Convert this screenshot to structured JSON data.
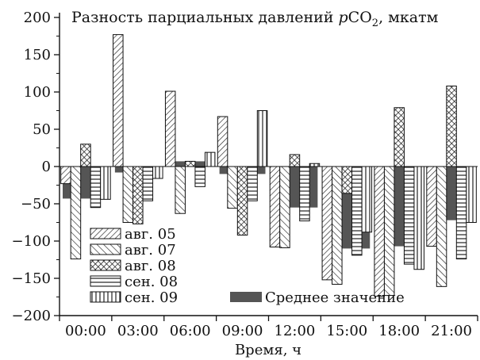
{
  "chart_data": {
    "type": "bar",
    "title": "Разность парциальных давлений pCO₂, мкатм",
    "title_parts": {
      "prefix": "Разность парциальных давлений ",
      "italic": "p",
      "species": "CO",
      "subscript": "2",
      "suffix": ", мкатм"
    },
    "xlabel": "Время, ч",
    "ylabel": "",
    "ylim": [
      -200,
      200
    ],
    "yticks": [
      "200",
      "150",
      "100",
      "50",
      "0",
      "−50",
      "−100",
      "−150",
      "−200"
    ],
    "yticks_values": [
      200,
      150,
      100,
      50,
      0,
      -50,
      -100,
      -150,
      -200
    ],
    "categories": [
      "00:00",
      "03:00",
      "06:00",
      "09:00",
      "12:00",
      "15:00",
      "18:00",
      "21:00"
    ],
    "series": [
      {
        "name": "авг. 05",
        "pattern": "diag-right",
        "values": [
          -23,
          177,
          101,
          67,
          -108,
          -152,
          -174,
          -107
        ]
      },
      {
        "name": "авг. 07",
        "pattern": "diag-left",
        "values": [
          -124,
          -75,
          -63,
          -56,
          -109,
          -158,
          -173,
          -161
        ]
      },
      {
        "name": "авг. 08",
        "pattern": "crosshatch",
        "values": [
          30,
          -77,
          7,
          -92,
          16,
          -36,
          79,
          108
        ]
      },
      {
        "name": "сен. 08",
        "pattern": "horizontal",
        "values": [
          -55,
          -46,
          -27,
          -46,
          -73,
          -119,
          -131,
          -124
        ]
      },
      {
        "name": "сен. 09",
        "pattern": "vertical",
        "values": [
          -44,
          -16,
          19,
          75,
          4,
          -88,
          -138,
          -75
        ]
      }
    ],
    "mean": {
      "name": "Среднее значение",
      "color": "#555555",
      "values": [
        -43,
        -8,
        7,
        -10,
        -55,
        -110,
        -107,
        -72
      ]
    },
    "grid": false,
    "legend_position": "bottom-left"
  }
}
